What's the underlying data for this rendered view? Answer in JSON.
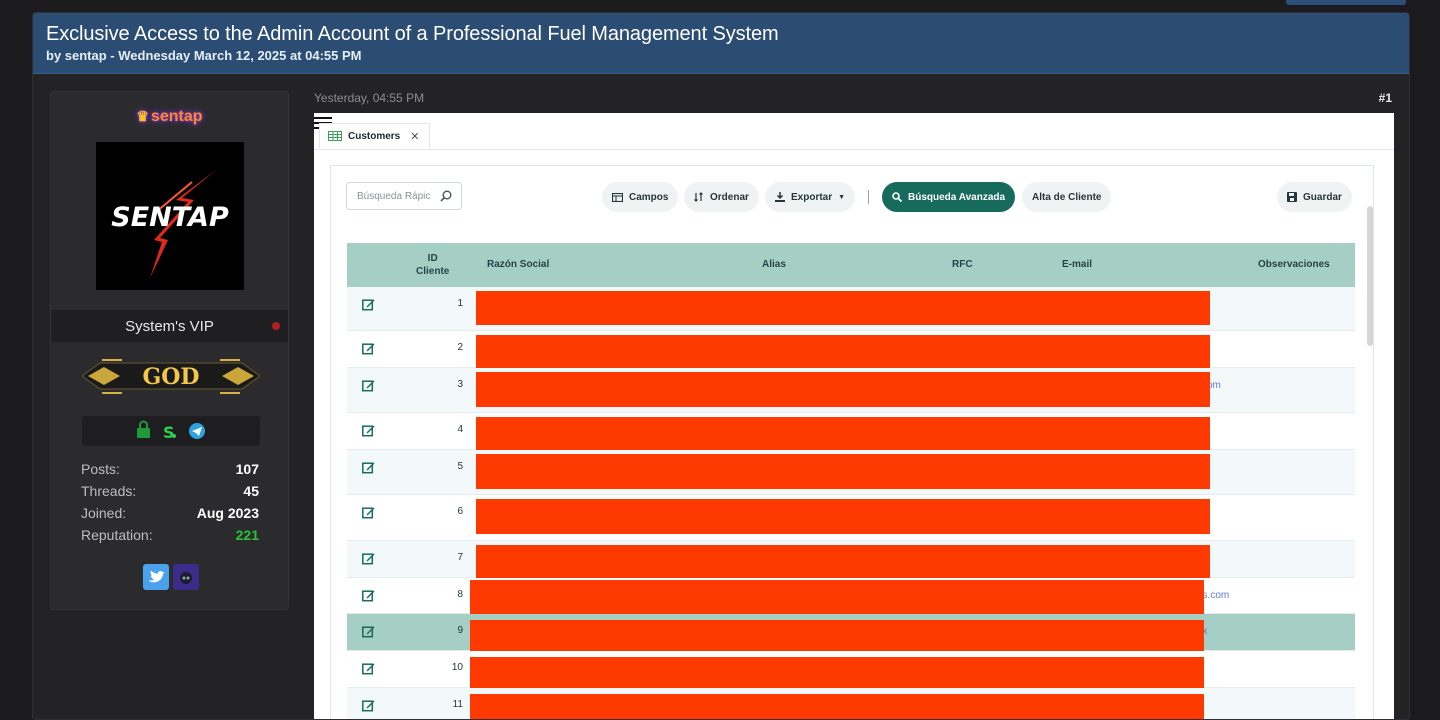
{
  "thread": {
    "title": "Exclusive Access to the Admin Account of a Professional Fuel Management System",
    "byline": "by sentap - Wednesday March 12, 2025 at 04:55 PM"
  },
  "user": {
    "name": "sentap",
    "avatar_text": "SENTAP",
    "role": "System's VIP",
    "rank_badge": "GOD",
    "stats": [
      {
        "label": "Posts:",
        "value": "107"
      },
      {
        "label": "Threads:",
        "value": "45"
      },
      {
        "label": "Joined:",
        "value": "Aug 2023"
      },
      {
        "label": "Reputation:",
        "value": "221"
      }
    ],
    "reputation_color": "#29c23a"
  },
  "post": {
    "time": "Yesterday, 04:55 PM",
    "number": "#1"
  },
  "app": {
    "tab_label": "Customers",
    "search_placeholder": "Búsqueda Rápic",
    "buttons": {
      "campos": "Campos",
      "ordenar": "Ordenar",
      "exportar": "Exportar",
      "busqueda_avanzada": "Búsqueda Avanzada",
      "alta_cliente": "Alta de Cliente",
      "guardar": "Guardar"
    },
    "columns": {
      "id_line1": "ID",
      "id_line2": "Cliente",
      "razon_social": "Razón Social",
      "alias": "Alias",
      "rfc": "RFC",
      "email": "E-mail",
      "observaciones": "Observaciones"
    },
    "rows": [
      {
        "id": "1",
        "email_tail": ""
      },
      {
        "id": "2",
        "email_tail": ""
      },
      {
        "id": "3",
        "email_tail": "om"
      },
      {
        "id": "4",
        "email_tail": ""
      },
      {
        "id": "5",
        "email_tail": ""
      },
      {
        "id": "6",
        "email_tail": ""
      },
      {
        "id": "7",
        "email_tail": ""
      },
      {
        "id": "8",
        "email_tail": "es.com"
      },
      {
        "id": "9",
        "email_tail": "ix"
      },
      {
        "id": "10",
        "email_tail": ""
      },
      {
        "id": "11",
        "email_tail": ""
      }
    ],
    "accent_color": "#176b5c",
    "header_color": "#a5cec4",
    "redaction_color": "#ff3a00"
  }
}
